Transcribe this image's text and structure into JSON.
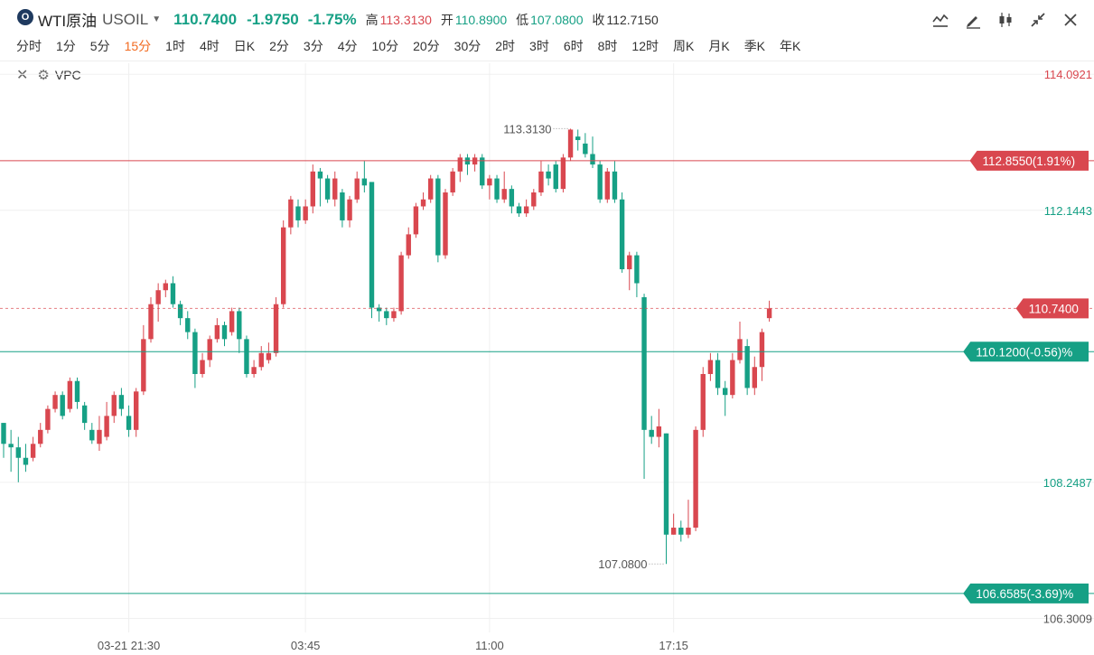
{
  "header": {
    "logo_text": "O",
    "title": "WTI原油",
    "symbol": "USOIL",
    "price": "110.7400",
    "change": "-1.9750",
    "change_pct": "-1.75%",
    "high_label": "高",
    "high": "113.3130",
    "open_label": "开",
    "open": "110.8900",
    "low_label": "低",
    "low": "107.0800",
    "close_label": "收",
    "close": "112.7150",
    "tools": [
      "line-style-icon",
      "draw-pen-icon",
      "candlestick-type-icon",
      "collapse-icon",
      "close-icon"
    ]
  },
  "periods": [
    "分时",
    "1分",
    "5分",
    "15分",
    "1时",
    "4时",
    "日K",
    "2分",
    "3分",
    "4分",
    "10分",
    "20分",
    "30分",
    "2时",
    "3时",
    "6时",
    "8时",
    "12时",
    "周K",
    "月K",
    "季K",
    "年K"
  ],
  "active_period": "15分",
  "indicator": {
    "name": "VPC"
  },
  "colors": {
    "up": "#d9474f",
    "down": "#16a085",
    "grid": "#f0f0f0"
  },
  "chart_data": {
    "type": "candlestick",
    "y_range": [
      106.1,
      114.25
    ],
    "price_ticks": [
      114.0921,
      112.1443,
      108.2487,
      106.3009
    ],
    "x_labels": [
      "03-21 21:30",
      "03:45",
      "11:00",
      "17:15"
    ],
    "lines": [
      {
        "price": 112.855,
        "label": "112.8550(1.91%)",
        "color": "#d9474f",
        "style": "solid"
      },
      {
        "price": 110.74,
        "label": "110.7400",
        "color": "#d9474f",
        "style": "dashed"
      },
      {
        "price": 110.12,
        "label": "110.1200(-0.56)%",
        "color": "#16a085",
        "style": "solid"
      },
      {
        "price": 106.6585,
        "label": "106.6585(-3.69)%",
        "color": "#16a085",
        "style": "solid"
      }
    ],
    "annotations": [
      {
        "label": "113.3130",
        "price": 113.313,
        "index": 77,
        "side": "left"
      },
      {
        "label": "107.0800",
        "price": 107.08,
        "index": 90,
        "side": "left"
      }
    ],
    "candles": [
      [
        109.1,
        108.8,
        109.1,
        108.6
      ],
      [
        108.8,
        108.75,
        109.0,
        108.4
      ],
      [
        108.75,
        108.6,
        108.9,
        108.25
      ],
      [
        108.6,
        108.5,
        108.8,
        108.4
      ],
      [
        108.6,
        108.8,
        108.9,
        108.55
      ],
      [
        108.8,
        109.0,
        109.1,
        108.75
      ],
      [
        109.0,
        109.3,
        109.35,
        108.95
      ],
      [
        109.3,
        109.5,
        109.55,
        109.25
      ],
      [
        109.5,
        109.2,
        109.55,
        109.15
      ],
      [
        109.3,
        109.7,
        109.75,
        109.25
      ],
      [
        109.7,
        109.4,
        109.75,
        109.3
      ],
      [
        109.35,
        109.1,
        109.4,
        109.0
      ],
      [
        109.0,
        108.85,
        109.1,
        108.8
      ],
      [
        108.8,
        109.0,
        109.2,
        108.7
      ],
      [
        108.9,
        109.2,
        109.4,
        108.85
      ],
      [
        109.2,
        109.5,
        109.55,
        109.1
      ],
      [
        109.5,
        109.3,
        109.6,
        109.2
      ],
      [
        109.2,
        109.0,
        109.35,
        108.9
      ],
      [
        109.0,
        109.55,
        109.6,
        108.9
      ],
      [
        109.55,
        110.3,
        110.5,
        109.5
      ],
      [
        110.3,
        110.8,
        110.9,
        110.25
      ],
      [
        110.8,
        111.0,
        111.1,
        110.55
      ],
      [
        111.0,
        111.1,
        111.15,
        110.9
      ],
      [
        111.1,
        110.8,
        111.2,
        110.75
      ],
      [
        110.8,
        110.6,
        110.85,
        110.5
      ],
      [
        110.6,
        110.4,
        110.7,
        110.3
      ],
      [
        110.4,
        109.8,
        110.45,
        109.6
      ],
      [
        109.8,
        110.0,
        110.1,
        109.75
      ],
      [
        110.0,
        110.3,
        110.35,
        109.9
      ],
      [
        110.3,
        110.5,
        110.6,
        110.25
      ],
      [
        110.5,
        110.3,
        110.55,
        110.2
      ],
      [
        110.4,
        110.7,
        110.75,
        110.35
      ],
      [
        110.7,
        110.3,
        110.75,
        110.1
      ],
      [
        110.3,
        109.8,
        110.35,
        109.75
      ],
      [
        109.8,
        109.9,
        110.0,
        109.75
      ],
      [
        109.9,
        110.1,
        110.2,
        109.85
      ],
      [
        110.0,
        110.1,
        110.25,
        109.95
      ],
      [
        110.1,
        110.8,
        110.9,
        110.05
      ],
      [
        110.8,
        111.9,
        112.0,
        110.75
      ],
      [
        111.9,
        112.3,
        112.35,
        111.8
      ],
      [
        112.2,
        112.0,
        112.3,
        111.9
      ],
      [
        112.0,
        112.2,
        112.3,
        111.95
      ],
      [
        112.2,
        112.7,
        112.8,
        112.1
      ],
      [
        112.7,
        112.6,
        112.75,
        112.2
      ],
      [
        112.6,
        112.3,
        112.65,
        112.25
      ],
      [
        112.3,
        112.6,
        112.7,
        112.2
      ],
      [
        112.4,
        112.0,
        112.45,
        111.9
      ],
      [
        112.0,
        112.3,
        112.35,
        111.9
      ],
      [
        112.3,
        112.6,
        112.7,
        112.25
      ],
      [
        112.6,
        112.5,
        112.85,
        112.4
      ],
      [
        112.55,
        110.75,
        110.8,
        110.6
      ],
      [
        110.75,
        110.7,
        110.8,
        110.55
      ],
      [
        110.7,
        110.6,
        110.75,
        110.5
      ],
      [
        110.6,
        110.7,
        110.75,
        110.55
      ],
      [
        110.7,
        111.5,
        111.55,
        110.65
      ],
      [
        111.5,
        111.8,
        111.9,
        111.45
      ],
      [
        111.8,
        112.2,
        112.25,
        111.75
      ],
      [
        112.2,
        112.3,
        112.4,
        112.15
      ],
      [
        112.3,
        112.6,
        112.65,
        112.25
      ],
      [
        112.6,
        111.5,
        112.65,
        111.4
      ],
      [
        111.5,
        112.4,
        112.45,
        111.45
      ],
      [
        112.4,
        112.7,
        112.75,
        112.35
      ],
      [
        112.7,
        112.9,
        112.95,
        112.55
      ],
      [
        112.9,
        112.8,
        112.95,
        112.65
      ],
      [
        112.8,
        112.9,
        112.95,
        112.7
      ],
      [
        112.9,
        112.5,
        112.95,
        112.45
      ],
      [
        112.5,
        112.6,
        112.65,
        112.3
      ],
      [
        112.6,
        112.3,
        112.65,
        112.25
      ],
      [
        112.3,
        112.45,
        112.7,
        112.25
      ],
      [
        112.45,
        112.2,
        112.5,
        112.1
      ],
      [
        112.2,
        112.1,
        112.25,
        112.05
      ],
      [
        112.1,
        112.2,
        112.3,
        112.05
      ],
      [
        112.2,
        112.4,
        112.45,
        112.15
      ],
      [
        112.4,
        112.7,
        112.85,
        112.35
      ],
      [
        112.7,
        112.6,
        112.8,
        112.5
      ],
      [
        112.8,
        112.45,
        112.85,
        112.4
      ],
      [
        112.45,
        112.9,
        112.95,
        112.4
      ],
      [
        112.9,
        113.3,
        113.313,
        112.85
      ],
      [
        113.2,
        113.15,
        113.3,
        113.0
      ],
      [
        113.1,
        112.95,
        113.25,
        112.9
      ],
      [
        112.95,
        112.8,
        113.2,
        112.75
      ],
      [
        112.8,
        112.3,
        112.85,
        112.25
      ],
      [
        112.3,
        112.7,
        112.75,
        112.25
      ],
      [
        112.7,
        112.3,
        112.85,
        112.25
      ],
      [
        112.3,
        111.3,
        112.4,
        111.25
      ],
      [
        111.3,
        111.5,
        111.55,
        111.0
      ],
      [
        111.5,
        111.1,
        111.55,
        110.9
      ],
      [
        110.9,
        109.0,
        110.95,
        108.3
      ],
      [
        109.0,
        108.9,
        109.2,
        108.8
      ],
      [
        108.9,
        109.05,
        109.3,
        108.75
      ],
      [
        108.95,
        107.5,
        108.95,
        107.08
      ],
      [
        107.5,
        107.6,
        107.8,
        107.5
      ],
      [
        107.6,
        107.5,
        107.7,
        107.4
      ],
      [
        107.5,
        107.6,
        108.0,
        107.45
      ],
      [
        107.6,
        109.0,
        109.05,
        107.55
      ],
      [
        109.0,
        109.8,
        109.9,
        108.9
      ],
      [
        109.8,
        110.0,
        110.1,
        109.7
      ],
      [
        110.0,
        109.6,
        110.1,
        109.5
      ],
      [
        109.6,
        109.5,
        109.7,
        109.2
      ],
      [
        109.5,
        110.0,
        110.1,
        109.45
      ],
      [
        110.0,
        110.3,
        110.55,
        109.95
      ],
      [
        110.2,
        109.6,
        110.3,
        109.5
      ],
      [
        109.6,
        109.9,
        110.05,
        109.5
      ],
      [
        109.9,
        110.4,
        110.45,
        109.7
      ],
      [
        110.6,
        110.74,
        110.85,
        110.55
      ]
    ]
  }
}
